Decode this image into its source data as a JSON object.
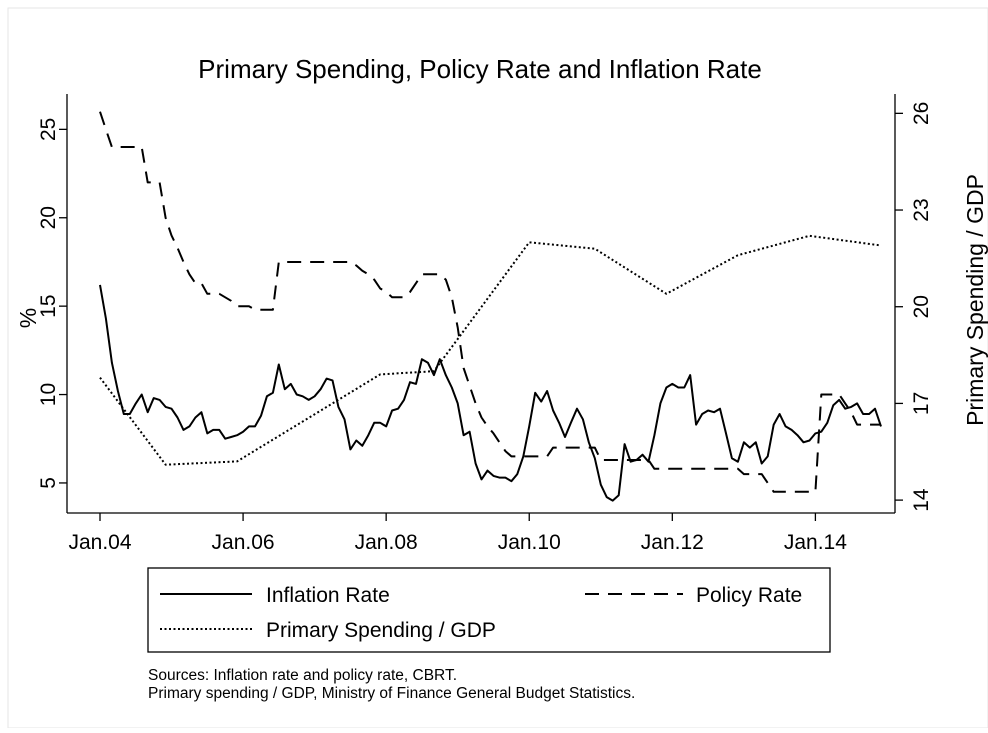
{
  "chart_data": {
    "type": "line",
    "title": "Primary Spending, Policy Rate and Inflation Rate",
    "x_tick_labels": [
      "Jan.04",
      "Jan.06",
      "Jan.08",
      "Jan.10",
      "Jan.12",
      "Jan.14"
    ],
    "x_ticks": [
      2004,
      2006,
      2008,
      2010,
      2012,
      2014
    ],
    "xlim": [
      2004,
      2014.917
    ],
    "left_axis": {
      "label": "%",
      "ticks": [
        5,
        10,
        15,
        20,
        25
      ],
      "tick_labels": [
        "5",
        "10",
        "15",
        "20",
        "25"
      ],
      "ylim": [
        3.3,
        27.0
      ]
    },
    "right_axis": {
      "label": "Primary Spending / GDP",
      "ticks": [
        14,
        17,
        20,
        23,
        26
      ],
      "tick_labels": [
        "14",
        "17",
        "20",
        "23",
        "26"
      ],
      "ylim": [
        13.6,
        26.6
      ]
    },
    "series": [
      {
        "name": "Inflation Rate",
        "axis": "left",
        "style": "solid",
        "x": [
          2004.0,
          2004.083,
          2004.167,
          2004.25,
          2004.333,
          2004.417,
          2004.5,
          2004.583,
          2004.667,
          2004.75,
          2004.833,
          2004.917,
          2005.0,
          2005.083,
          2005.167,
          2005.25,
          2005.333,
          2005.417,
          2005.5,
          2005.583,
          2005.667,
          2005.75,
          2005.833,
          2005.917,
          2006.0,
          2006.083,
          2006.167,
          2006.25,
          2006.333,
          2006.417,
          2006.5,
          2006.583,
          2006.667,
          2006.75,
          2006.833,
          2006.917,
          2007.0,
          2007.083,
          2007.167,
          2007.25,
          2007.333,
          2007.417,
          2007.5,
          2007.583,
          2007.667,
          2007.75,
          2007.833,
          2007.917,
          2008.0,
          2008.083,
          2008.167,
          2008.25,
          2008.333,
          2008.417,
          2008.5,
          2008.583,
          2008.667,
          2008.75,
          2008.833,
          2008.917,
          2009.0,
          2009.083,
          2009.167,
          2009.25,
          2009.333,
          2009.417,
          2009.5,
          2009.583,
          2009.667,
          2009.75,
          2009.833,
          2009.917,
          2010.0,
          2010.083,
          2010.167,
          2010.25,
          2010.333,
          2010.417,
          2010.5,
          2010.583,
          2010.667,
          2010.75,
          2010.833,
          2010.917,
          2011.0,
          2011.083,
          2011.167,
          2011.25,
          2011.333,
          2011.417,
          2011.5,
          2011.583,
          2011.667,
          2011.75,
          2011.833,
          2011.917,
          2012.0,
          2012.083,
          2012.167,
          2012.25,
          2012.333,
          2012.417,
          2012.5,
          2012.583,
          2012.667,
          2012.75,
          2012.833,
          2012.917,
          2013.0,
          2013.083,
          2013.167,
          2013.25,
          2013.333,
          2013.417,
          2013.5,
          2013.583,
          2013.667,
          2013.75,
          2013.833,
          2013.917,
          2014.0,
          2014.083,
          2014.167,
          2014.25,
          2014.333,
          2014.417,
          2014.5,
          2014.583,
          2014.667,
          2014.75,
          2014.833,
          2014.917
        ],
        "y": [
          16.2,
          14.3,
          11.8,
          10.2,
          8.9,
          8.9,
          9.5,
          10.0,
          9.0,
          9.8,
          9.7,
          9.3,
          9.2,
          8.7,
          8.0,
          8.2,
          8.7,
          9.0,
          7.8,
          8.0,
          8.0,
          7.5,
          7.6,
          7.7,
          7.9,
          8.2,
          8.2,
          8.8,
          9.9,
          10.1,
          11.7,
          10.3,
          10.6,
          10.0,
          9.9,
          9.7,
          9.9,
          10.3,
          10.9,
          10.8,
          9.3,
          8.6,
          6.9,
          7.4,
          7.1,
          7.7,
          8.4,
          8.4,
          8.2,
          9.1,
          9.2,
          9.7,
          10.7,
          10.6,
          12.0,
          11.8,
          11.1,
          12.0,
          11.1,
          10.4,
          9.5,
          7.7,
          7.9,
          6.1,
          5.2,
          5.7,
          5.4,
          5.3,
          5.3,
          5.1,
          5.5,
          6.5,
          8.2,
          10.1,
          9.6,
          10.2,
          9.1,
          8.4,
          7.6,
          8.4,
          9.2,
          8.6,
          7.3,
          6.4,
          4.9,
          4.2,
          4.0,
          4.3,
          7.2,
          6.2,
          6.3,
          6.6,
          6.2,
          7.7,
          9.5,
          10.4,
          10.6,
          10.4,
          10.4,
          11.1,
          8.3,
          8.9,
          9.1,
          9.0,
          9.2,
          7.8,
          6.4,
          6.2,
          7.3,
          7.0,
          7.3,
          6.1,
          6.5,
          8.3,
          8.9,
          8.2,
          8.0,
          7.7,
          7.3,
          7.4,
          7.8,
          7.9,
          8.4,
          9.4,
          9.7,
          9.2,
          9.3,
          9.5,
          8.9,
          8.9,
          9.2,
          8.2
        ]
      },
      {
        "name": "Policy Rate",
        "axis": "left",
        "style": "dashed",
        "x": [
          2004.0,
          2004.083,
          2004.167,
          2004.25,
          2004.333,
          2004.417,
          2004.5,
          2004.583,
          2004.667,
          2004.75,
          2004.833,
          2004.917,
          2005.0,
          2005.083,
          2005.167,
          2005.25,
          2005.333,
          2005.417,
          2005.5,
          2005.583,
          2005.667,
          2005.75,
          2005.833,
          2005.917,
          2006.0,
          2006.083,
          2006.167,
          2006.25,
          2006.333,
          2006.417,
          2006.5,
          2006.583,
          2006.667,
          2006.75,
          2006.833,
          2006.917,
          2007.0,
          2007.083,
          2007.167,
          2007.25,
          2007.333,
          2007.417,
          2007.5,
          2007.583,
          2007.667,
          2007.75,
          2007.833,
          2007.917,
          2008.0,
          2008.083,
          2008.167,
          2008.25,
          2008.333,
          2008.417,
          2008.5,
          2008.583,
          2008.667,
          2008.75,
          2008.833,
          2008.917,
          2009.0,
          2009.083,
          2009.167,
          2009.25,
          2009.333,
          2009.417,
          2009.5,
          2009.583,
          2009.667,
          2009.75,
          2009.833,
          2009.917,
          2010.0,
          2010.083,
          2010.167,
          2010.25,
          2010.333,
          2010.417,
          2010.5,
          2010.583,
          2010.667,
          2010.75,
          2010.833,
          2010.917,
          2011.0,
          2011.083,
          2011.167,
          2011.25,
          2011.333,
          2011.417,
          2011.5,
          2011.583,
          2011.667,
          2011.75,
          2011.833,
          2011.917,
          2012.0,
          2012.083,
          2012.167,
          2012.25,
          2012.333,
          2012.417,
          2012.5,
          2012.583,
          2012.667,
          2012.75,
          2012.833,
          2012.917,
          2013.0,
          2013.083,
          2013.167,
          2013.25,
          2013.333,
          2013.417,
          2013.5,
          2013.583,
          2013.667,
          2013.75,
          2013.833,
          2013.917,
          2014.0,
          2014.083,
          2014.167,
          2014.25,
          2014.333,
          2014.417,
          2014.5,
          2014.583,
          2014.667,
          2014.75,
          2014.833,
          2014.917
        ],
        "y": [
          26.0,
          25.0,
          24.0,
          24.0,
          24.0,
          24.0,
          24.0,
          24.0,
          22.0,
          22.0,
          22.0,
          20.0,
          19.0,
          18.3,
          17.5,
          16.8,
          16.3,
          16.3,
          15.7,
          15.7,
          15.7,
          15.5,
          15.3,
          15.0,
          15.0,
          15.0,
          14.8,
          14.8,
          14.8,
          14.8,
          17.5,
          17.5,
          17.5,
          17.5,
          17.5,
          17.5,
          17.5,
          17.5,
          17.5,
          17.5,
          17.5,
          17.5,
          17.5,
          17.3,
          17.0,
          16.8,
          16.5,
          16.0,
          15.8,
          15.5,
          15.5,
          15.5,
          15.8,
          16.3,
          16.8,
          16.8,
          16.8,
          16.8,
          16.5,
          15.5,
          13.8,
          11.5,
          10.5,
          9.5,
          8.7,
          8.2,
          7.8,
          7.3,
          6.8,
          6.5,
          6.5,
          6.5,
          6.5,
          6.5,
          6.5,
          6.5,
          7.0,
          7.0,
          7.0,
          7.0,
          7.0,
          7.0,
          7.0,
          7.0,
          6.3,
          6.3,
          6.3,
          6.3,
          6.3,
          6.3,
          6.3,
          6.3,
          6.3,
          5.8,
          5.8,
          5.8,
          5.8,
          5.8,
          5.8,
          5.8,
          5.8,
          5.8,
          5.8,
          5.8,
          5.8,
          5.8,
          5.8,
          5.8,
          5.5,
          5.5,
          5.5,
          5.5,
          5.0,
          4.5,
          4.5,
          4.5,
          4.5,
          4.5,
          4.5,
          4.5,
          4.5,
          10.0,
          10.0,
          10.0,
          10.0,
          9.5,
          9.0,
          8.3,
          8.3,
          8.3,
          8.3,
          8.3
        ]
      },
      {
        "name": "Primary Spending / GDP",
        "axis": "right",
        "style": "dotted",
        "x": [
          2004.0,
          2004.917,
          2005.917,
          2007.917,
          2008.667,
          2010.0,
          2010.917,
          2011.917,
          2012.917,
          2013.917,
          2014.917
        ],
        "y": [
          17.8,
          15.1,
          15.2,
          17.9,
          18.0,
          22.0,
          21.8,
          20.4,
          21.6,
          22.2,
          21.9
        ]
      }
    ],
    "legend": {
      "placement": "bottom",
      "entries": [
        "Inflation Rate",
        "Policy Rate",
        "Primary Spending / GDP"
      ]
    },
    "grid": false,
    "notes": [
      "Sources: Inflation rate and policy rate, CBRT.",
      "Primary spending / GDP, Ministry of Finance General Budget Statistics."
    ]
  }
}
